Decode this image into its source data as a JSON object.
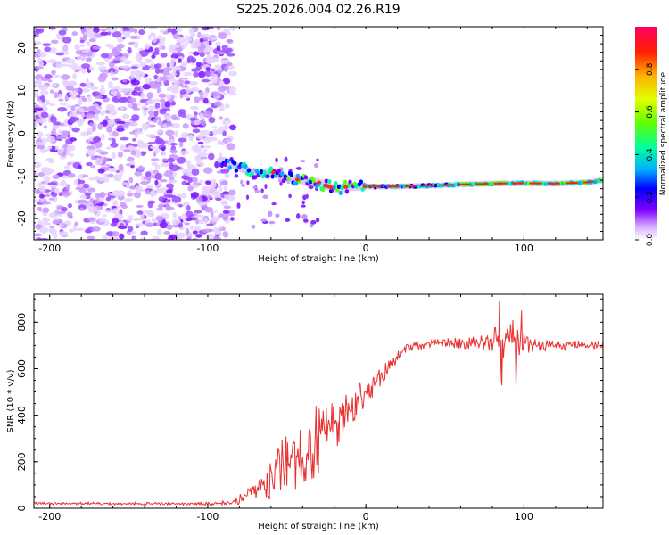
{
  "title": "S225.2026.004.02.26.R19",
  "chart_data": [
    {
      "type": "heatmap",
      "panel": "spectrogram",
      "xlabel": "Height of straight line (km)",
      "ylabel": "Frequency (Hz)",
      "xlim": [
        -210,
        150
      ],
      "ylim": [
        -25,
        25
      ],
      "xticks": [
        -200,
        -100,
        0,
        100
      ],
      "xtick_labels": [
        "-200",
        "-100",
        "0",
        "100"
      ],
      "yticks": [
        -20,
        -10,
        0,
        10,
        20
      ],
      "ytick_labels": [
        "-20",
        "-10",
        "0",
        "10",
        "20"
      ],
      "noise_region_x": [
        -210,
        -90
      ],
      "signal_track": {
        "x": [
          -90,
          -80,
          -70,
          -60,
          -50,
          -40,
          -30,
          -20,
          -10,
          0,
          10,
          20,
          40,
          60,
          80,
          100,
          120,
          140,
          150
        ],
        "freq_hz": [
          -6.5,
          -8,
          -9.5,
          -9,
          -10.5,
          -11,
          -11.5,
          -13,
          -12.5,
          -12.5,
          -12.5,
          -12.5,
          -12.3,
          -12,
          -11.8,
          -11.7,
          -11.8,
          -11.5,
          -11
        ]
      },
      "colorbar": {
        "label": "Normalized spectral amplitude",
        "range": [
          0.0,
          1.0
        ],
        "ticks": [
          0.0,
          0.2,
          0.4,
          0.6,
          0.8
        ],
        "tick_labels": [
          "0.0",
          "0.2",
          "0.4",
          "0.6",
          "0.8"
        ],
        "colormap": [
          "#ffffff",
          "#d8b0ff",
          "#8000ff",
          "#0000ff",
          "#00b0ff",
          "#00ffa0",
          "#60ff00",
          "#e0ff00",
          "#ffb000",
          "#ff2000",
          "#ff0060"
        ]
      }
    },
    {
      "type": "line",
      "panel": "snr",
      "xlabel": "Height of straight line (km)",
      "ylabel": "SNR (10 * v/v)",
      "xlim": [
        -210,
        150
      ],
      "ylim": [
        0,
        920
      ],
      "xticks": [
        -200,
        -100,
        0,
        100
      ],
      "xtick_labels": [
        "-200",
        "-100",
        "0",
        "100"
      ],
      "yticks": [
        0,
        200,
        400,
        600,
        800
      ],
      "ytick_labels": [
        "0",
        "200",
        "400",
        "600",
        "800"
      ],
      "series": [
        {
          "name": "SNR",
          "color": "#e83030",
          "x": [
            -210,
            -190,
            -170,
            -150,
            -130,
            -110,
            -95,
            -85,
            -80,
            -75,
            -70,
            -65,
            -60,
            -55,
            -50,
            -45,
            -40,
            -35,
            -30,
            -25,
            -20,
            -15,
            -10,
            -5,
            0,
            5,
            10,
            15,
            20,
            25,
            30,
            40,
            50,
            60,
            70,
            80,
            85,
            90,
            95,
            100,
            110,
            120,
            130,
            140,
            150
          ],
          "y": [
            20,
            20,
            20,
            20,
            20,
            20,
            20,
            25,
            40,
            60,
            90,
            110,
            120,
            150,
            180,
            210,
            240,
            260,
            300,
            330,
            360,
            390,
            430,
            470,
            500,
            530,
            570,
            610,
            650,
            680,
            700,
            705,
            710,
            710,
            715,
            720,
            720,
            730,
            720,
            710,
            700,
            700,
            700,
            700,
            700
          ],
          "noise": [
            6,
            6,
            6,
            6,
            6,
            6,
            8,
            12,
            25,
            35,
            50,
            70,
            90,
            120,
            150,
            160,
            170,
            170,
            150,
            140,
            120,
            100,
            90,
            70,
            60,
            50,
            40,
            30,
            25,
            20,
            20,
            20,
            22,
            25,
            28,
            50,
            80,
            120,
            90,
            50,
            25,
            20,
            20,
            20,
            20
          ]
        }
      ]
    }
  ]
}
